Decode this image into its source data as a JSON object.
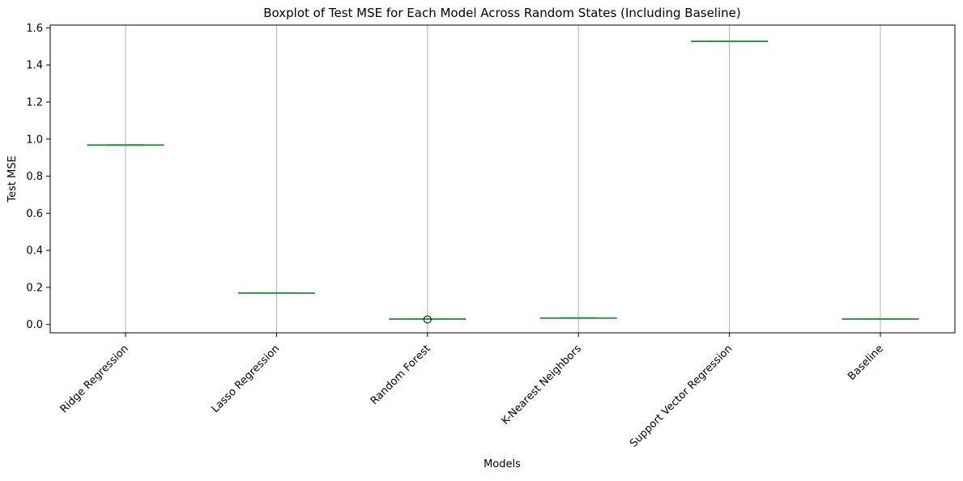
{
  "chart_data": {
    "type": "boxplot",
    "title": "Boxplot of Test MSE for Each Model Across Random States (Including Baseline)",
    "xlabel": "Models",
    "ylabel": "Test MSE",
    "ylim": [
      -0.045,
      1.615
    ],
    "yticks": [
      "0.0",
      "0.2",
      "0.4",
      "0.6",
      "0.8",
      "1.0",
      "1.2",
      "1.4",
      "1.6"
    ],
    "categories": [
      "Ridge Regression",
      "Lasso Regression",
      "Random Forest",
      "K-Nearest Neighbors",
      "Support Vector Regression",
      "Baseline"
    ],
    "boxes": [
      {
        "name": "Ridge Regression",
        "median": 0.968,
        "q1": 0.967,
        "q3": 0.969,
        "whisker_low": 0.966,
        "whisker_high": 0.97,
        "outliers": []
      },
      {
        "name": "Lasso Regression",
        "median": 0.17,
        "q1": 0.169,
        "q3": 0.171,
        "whisker_low": 0.168,
        "whisker_high": 0.172,
        "outliers": []
      },
      {
        "name": "Random Forest",
        "median": 0.03,
        "q1": 0.029,
        "q3": 0.031,
        "whisker_low": 0.028,
        "whisker_high": 0.032,
        "outliers": [
          0.027
        ]
      },
      {
        "name": "K-Nearest Neighbors",
        "median": 0.035,
        "q1": 0.034,
        "q3": 0.036,
        "whisker_low": 0.033,
        "whisker_high": 0.037,
        "outliers": []
      },
      {
        "name": "Support Vector Regression",
        "median": 1.528,
        "q1": 1.527,
        "q3": 1.529,
        "whisker_low": 1.526,
        "whisker_high": 1.53,
        "outliers": []
      },
      {
        "name": "Baseline",
        "median": 0.03,
        "q1": 0.029,
        "q3": 0.031,
        "whisker_low": 0.028,
        "whisker_high": 0.032,
        "outliers": []
      }
    ],
    "grid": "vertical",
    "colors": {
      "box": "#1f77b4",
      "median": "#2ca02c",
      "grid": "#b0b0b0",
      "axis": "#000000"
    }
  }
}
